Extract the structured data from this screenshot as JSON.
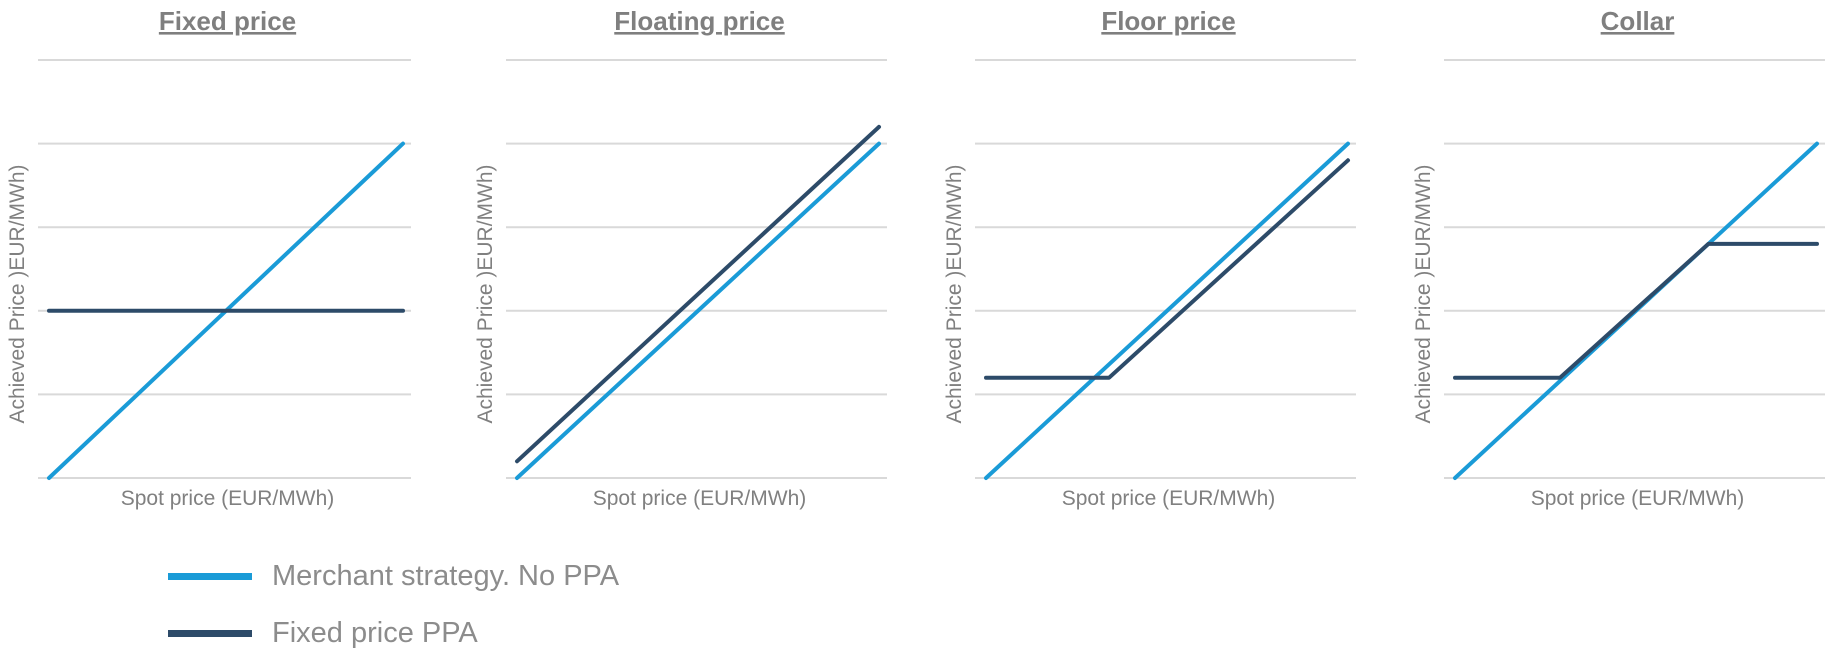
{
  "colors": {
    "merchant": "#1a9bd7",
    "ppa": "#2d4b69",
    "grid": "#d9d9d9",
    "axis_text": "#808080",
    "title_text": "#7f7f7f"
  },
  "legend": {
    "merchant_label": "Merchant strategy. No PPA",
    "ppa_label": "Fixed price PPA"
  },
  "chart_data": [
    {
      "type": "line",
      "title": "Fixed price",
      "xlabel": "Spot price (EUR/MWh)",
      "ylabel": "Achieved Price )EUR/MWh)",
      "xlim": [
        0,
        100
      ],
      "ylim": [
        0,
        5
      ],
      "grid": true,
      "series": [
        {
          "role": "merchant",
          "x": [
            0,
            100
          ],
          "y": [
            0,
            4
          ]
        },
        {
          "role": "ppa",
          "x": [
            0,
            100
          ],
          "y": [
            2,
            2
          ]
        }
      ]
    },
    {
      "type": "line",
      "title": "Floating price",
      "xlabel": "Spot price (EUR/MWh)",
      "ylabel": "Achieved Price )EUR/MWh)",
      "xlim": [
        0,
        100
      ],
      "ylim": [
        0,
        5
      ],
      "grid": true,
      "series": [
        {
          "role": "merchant",
          "x": [
            0,
            100
          ],
          "y": [
            0,
            4
          ]
        },
        {
          "role": "ppa",
          "x": [
            0,
            100
          ],
          "y": [
            0.2,
            4.2
          ]
        }
      ]
    },
    {
      "type": "line",
      "title": "Floor price",
      "xlabel": "Spot price (EUR/MWh)",
      "ylabel": "Achieved Price )EUR/MWh)",
      "xlim": [
        0,
        100
      ],
      "ylim": [
        0,
        5
      ],
      "grid": true,
      "series": [
        {
          "role": "merchant",
          "x": [
            0,
            100
          ],
          "y": [
            0,
            4
          ]
        },
        {
          "role": "ppa",
          "x": [
            0,
            34,
            100
          ],
          "y": [
            1.2,
            1.2,
            3.8
          ]
        }
      ]
    },
    {
      "type": "line",
      "title": "Collar",
      "xlabel": "Spot price (EUR/MWh)",
      "ylabel": "Achieved Price )EUR/MWh)",
      "xlim": [
        0,
        100
      ],
      "ylim": [
        0,
        5
      ],
      "grid": true,
      "series": [
        {
          "role": "merchant",
          "x": [
            0,
            100
          ],
          "y": [
            0,
            4
          ]
        },
        {
          "role": "ppa",
          "x": [
            0,
            29,
            70,
            100
          ],
          "y": [
            1.2,
            1.2,
            2.8,
            2.8
          ]
        }
      ]
    }
  ]
}
